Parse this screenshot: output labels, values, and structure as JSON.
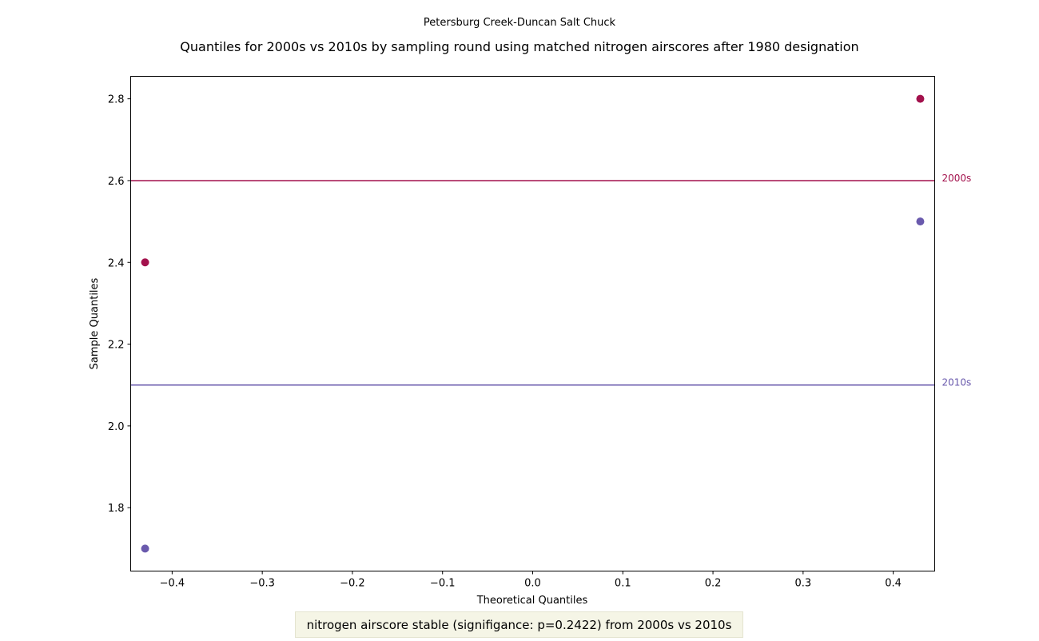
{
  "chart_data": {
    "type": "scatter",
    "suptitle": "Petersburg Creek-Duncan Salt Chuck",
    "title": "Quantiles for 2000s vs 2010s by sampling round using matched nitrogen airscores after 1980 designation",
    "xlabel": "Theoretical Quantiles",
    "ylabel": "Sample Quantiles",
    "xlim": [
      -0.446,
      0.446
    ],
    "ylim": [
      1.645,
      2.855
    ],
    "xticks": [
      -0.4,
      -0.3,
      -0.2,
      -0.1,
      0.0,
      0.1,
      0.2,
      0.3,
      0.4
    ],
    "xtick_labels": [
      "−0.4",
      "−0.3",
      "−0.2",
      "−0.1",
      "0.0",
      "0.1",
      "0.2",
      "0.3",
      "0.4"
    ],
    "yticks": [
      1.8,
      2.0,
      2.2,
      2.4,
      2.6,
      2.8
    ],
    "ytick_labels": [
      "1.8",
      "2.0",
      "2.2",
      "2.4",
      "2.6",
      "2.8"
    ],
    "grid": false,
    "series": [
      {
        "name": "2000s",
        "color": "#a3124d",
        "x": [
          -0.43,
          0.43
        ],
        "y": [
          2.4,
          2.8
        ],
        "hline": 2.6
      },
      {
        "name": "2010s",
        "color": "#6a5aad",
        "x": [
          -0.43,
          0.43
        ],
        "y": [
          1.7,
          2.5
        ],
        "hline": 2.1
      }
    ]
  },
  "note": "nitrogen airscore stable (signifigance: p=0.2422) from 2000s vs 2010s"
}
